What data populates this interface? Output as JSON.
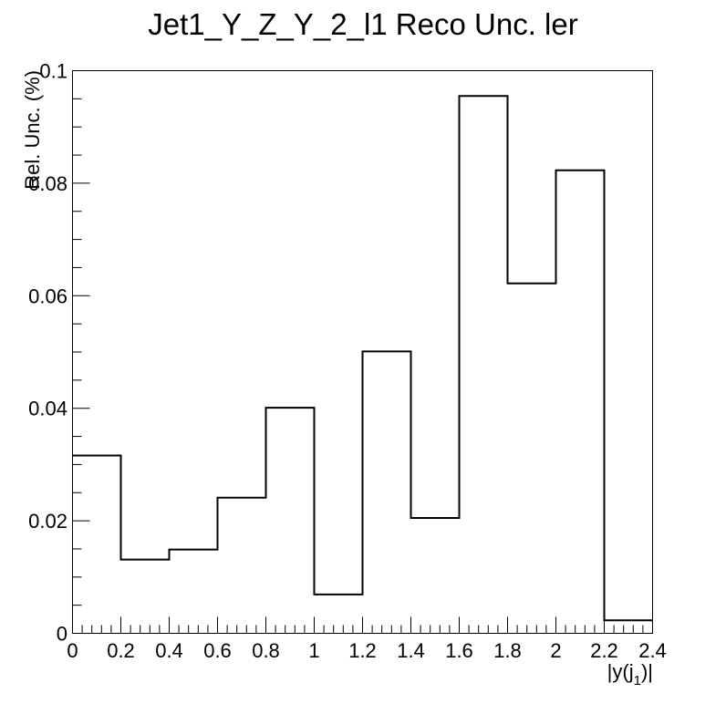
{
  "chart_data": {
    "type": "bar",
    "style": "step-histogram",
    "title": "Jet1_Y_Z_Y_2_l1 Reco Unc. ler",
    "xlabel": {
      "prefix": "|y(j",
      "sub": "1",
      "suffix": ")|"
    },
    "ylabel": "Rel. Unc. (%)",
    "xlim": [
      0,
      2.4
    ],
    "ylim": [
      0,
      0.1
    ],
    "xticks": [
      "0",
      "0.2",
      "0.4",
      "0.6",
      "0.8",
      "1",
      "1.2",
      "1.4",
      "1.6",
      "1.8",
      "2",
      "2.2",
      "2.4"
    ],
    "yticks": [
      "0",
      "0.02",
      "0.04",
      "0.06",
      "0.08",
      "0.1"
    ],
    "bin_edges": [
      0,
      0.2,
      0.4,
      0.6,
      0.8,
      1.0,
      1.2,
      1.4,
      1.6,
      1.8,
      2.0,
      2.2,
      2.4
    ],
    "values": [
      0.0316,
      0.0131,
      0.0149,
      0.0241,
      0.0401,
      0.0069,
      0.0501,
      0.0205,
      0.0955,
      0.0622,
      0.0823,
      0.0023
    ],
    "grid": false,
    "line_color": "#000000"
  }
}
